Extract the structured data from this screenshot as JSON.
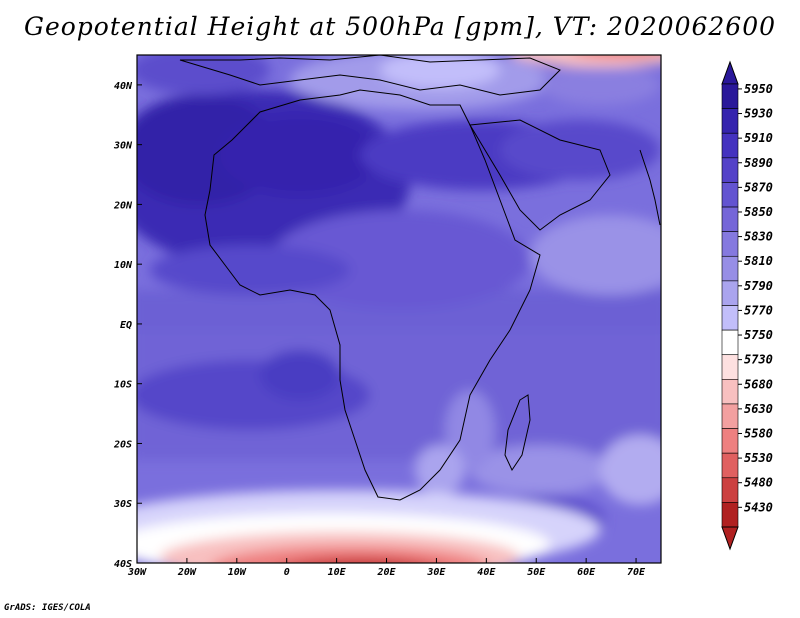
{
  "title": "Geopotential Height at 500hPa [gpm], VT: 2020062600",
  "footer": "GrADS: IGES/COLA",
  "map": {
    "lon_range": [
      -30,
      75
    ],
    "lat_range": [
      -40,
      45
    ],
    "lon_ticks": [
      {
        "value": -30,
        "label": "30W"
      },
      {
        "value": -20,
        "label": "20W"
      },
      {
        "value": -10,
        "label": "10W"
      },
      {
        "value": 0,
        "label": "0"
      },
      {
        "value": 10,
        "label": "10E"
      },
      {
        "value": 20,
        "label": "20E"
      },
      {
        "value": 30,
        "label": "30E"
      },
      {
        "value": 40,
        "label": "40E"
      },
      {
        "value": 50,
        "label": "50E"
      },
      {
        "value": 60,
        "label": "60E"
      },
      {
        "value": 70,
        "label": "70E"
      }
    ],
    "lat_ticks": [
      {
        "value": 40,
        "label": "40N"
      },
      {
        "value": 30,
        "label": "30N"
      },
      {
        "value": 20,
        "label": "20N"
      },
      {
        "value": 10,
        "label": "10N"
      },
      {
        "value": 0,
        "label": "EQ"
      },
      {
        "value": -10,
        "label": "10S"
      },
      {
        "value": -20,
        "label": "20S"
      },
      {
        "value": -30,
        "label": "30S"
      },
      {
        "value": -40,
        "label": "40S"
      }
    ]
  },
  "colorbar": {
    "levels": [
      "5950",
      "5930",
      "5910",
      "5890",
      "5870",
      "5850",
      "5830",
      "5810",
      "5790",
      "5770",
      "5750",
      "5730",
      "5680",
      "5630",
      "5580",
      "5530",
      "5480",
      "5430"
    ],
    "colors": [
      "#2a189a",
      "#3524ae",
      "#4432bf",
      "#5442c8",
      "#6354d1",
      "#7566d8",
      "#8579df",
      "#978ee6",
      "#aaa4ee",
      "#c2befa",
      "#ffffff",
      "#fde0e0",
      "#f8c0c0",
      "#f3a0a0",
      "#ee8080",
      "#e06060",
      "#cc4040",
      "#b02020"
    ]
  },
  "chart_data": {
    "type": "heatmap",
    "variable": "Geopotential Height at 500hPa",
    "units": "gpm",
    "valid_time": "2020062600",
    "x_range": [
      -30,
      75
    ],
    "y_range": [
      -40,
      45
    ],
    "levels": [
      5430,
      5480,
      5530,
      5580,
      5630,
      5680,
      5730,
      5750,
      5770,
      5790,
      5810,
      5830,
      5850,
      5870,
      5890,
      5910,
      5930,
      5950
    ],
    "features": [
      {
        "region": "Sahara / West Africa",
        "value_approx": 5900
      },
      {
        "region": "Equatorial Africa",
        "value_approx": 5860
      },
      {
        "region": "South Atlantic",
        "value_approx": 5860
      },
      {
        "region": "South Indian Ocean",
        "value_approx": 5840
      },
      {
        "region": "South of Cape (trough)",
        "value_approx": 5450
      },
      {
        "region": "Mediterranean / Europe",
        "value_approx": 5790
      }
    ]
  }
}
